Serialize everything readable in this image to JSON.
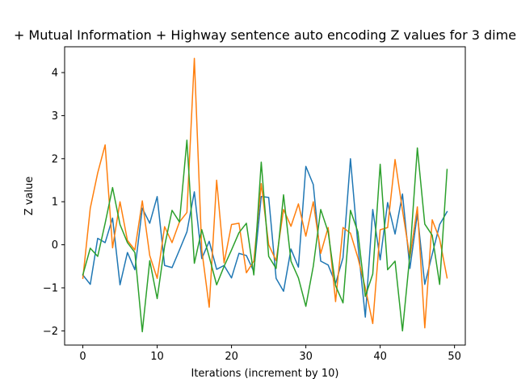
{
  "chart_data": {
    "type": "line",
    "title": "+ Mutual Information + Highway sentence auto encoding Z values for 3 dime",
    "xlabel": "Iterations (increment by 10)",
    "ylabel": "Z value",
    "xlim": [
      -2.45,
      51.45
    ],
    "ylim": [
      -2.33,
      4.6
    ],
    "xticks": [
      0,
      10,
      20,
      30,
      40,
      50
    ],
    "yticks": [
      -2,
      -1,
      0,
      1,
      2,
      3,
      4
    ],
    "xtick_labels": [
      "0",
      "10",
      "20",
      "30",
      "40",
      "50"
    ],
    "ytick_labels": [
      "−2",
      "−1",
      "0",
      "1",
      "2",
      "3",
      "4"
    ],
    "grid": false,
    "legend": "none",
    "x": [
      0,
      1,
      2,
      3,
      4,
      5,
      6,
      7,
      8,
      9,
      10,
      11,
      12,
      13,
      14,
      15,
      16,
      17,
      18,
      19,
      20,
      21,
      22,
      23,
      24,
      25,
      26,
      27,
      28,
      29,
      30,
      31,
      32,
      33,
      34,
      35,
      36,
      37,
      38,
      39,
      40,
      41,
      42,
      43,
      44,
      45,
      46,
      47,
      48,
      49
    ],
    "series": [
      {
        "color": "#1f77b4",
        "values": [
          -0.7,
          -0.92,
          0.15,
          0.05,
          0.62,
          -0.93,
          -0.18,
          -0.58,
          0.85,
          0.5,
          1.12,
          -0.48,
          -0.53,
          -0.12,
          0.3,
          1.23,
          -0.32,
          0.08,
          -0.57,
          -0.48,
          -0.77,
          -0.2,
          -0.25,
          -0.62,
          1.12,
          1.1,
          -0.78,
          -1.08,
          -0.1,
          -0.52,
          1.82,
          1.4,
          -0.38,
          -0.47,
          -0.9,
          -0.3,
          2.0,
          0.0,
          -1.68,
          0.82,
          -0.35,
          0.98,
          0.25,
          1.18,
          -0.55,
          0.72,
          -0.92,
          -0.22,
          0.47,
          0.77
        ]
      },
      {
        "color": "#ff7f0e",
        "values": [
          -0.78,
          0.85,
          1.67,
          2.32,
          -0.07,
          1.0,
          0.1,
          -0.12,
          1.02,
          -0.25,
          -0.78,
          0.42,
          0.05,
          0.53,
          0.75,
          4.33,
          -0.12,
          -1.45,
          1.5,
          -0.42,
          0.47,
          0.5,
          -0.65,
          -0.38,
          1.42,
          0.0,
          -0.37,
          0.82,
          0.43,
          0.95,
          0.2,
          1.0,
          -0.2,
          0.4,
          -1.32,
          0.4,
          0.27,
          -0.3,
          -1.0,
          -1.83,
          0.35,
          0.4,
          1.98,
          0.8,
          -0.3,
          0.88,
          -1.93,
          0.58,
          0.13,
          -0.77
        ]
      },
      {
        "color": "#2ca02c",
        "values": [
          -0.7,
          -0.08,
          -0.27,
          0.5,
          1.33,
          0.47,
          0.05,
          -0.18,
          -2.02,
          -0.37,
          -1.25,
          -0.03,
          0.8,
          0.53,
          2.43,
          -0.43,
          0.35,
          -0.28,
          -0.93,
          -0.5,
          -0.12,
          0.28,
          0.5,
          -0.7,
          1.92,
          -0.27,
          -0.55,
          1.16,
          -0.38,
          -0.77,
          -1.43,
          -0.5,
          0.82,
          0.3,
          -0.95,
          -1.35,
          0.8,
          0.3,
          -1.2,
          -0.68,
          1.87,
          -0.58,
          -0.38,
          -2.0,
          -0.23,
          2.25,
          0.48,
          0.22,
          -0.92,
          1.75
        ]
      }
    ]
  }
}
